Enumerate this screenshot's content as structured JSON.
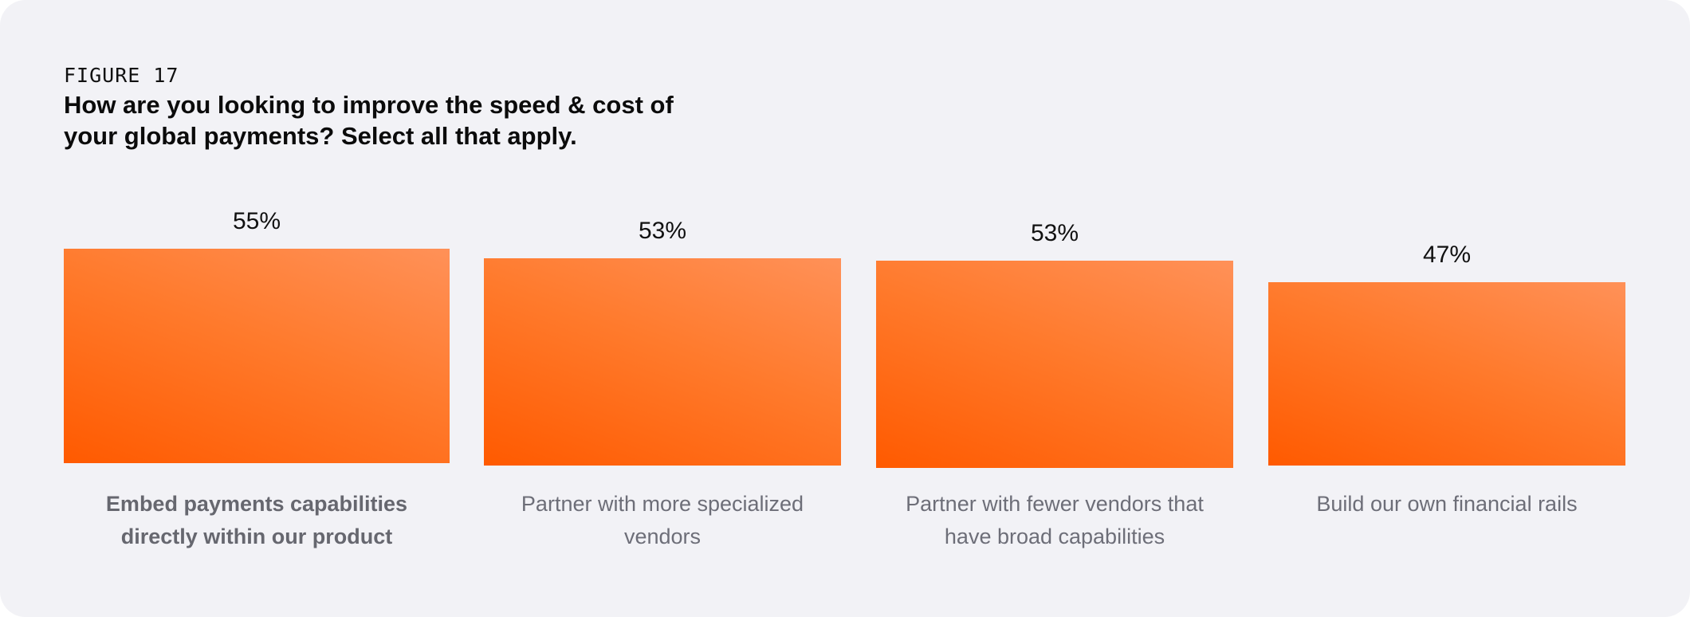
{
  "figure_label": "FIGURE 17",
  "title_line1": "How are you looking to improve the speed & cost of",
  "title_line2": "your global payments? Select all that apply.",
  "colors": {
    "background": "#f2f2f6",
    "bar_dark": "#ff5a00",
    "bar_light": "#ff9158",
    "category_text": "#6d6e78"
  },
  "chart_data": {
    "type": "bar",
    "categories": [
      "Embed payments capabilities directly within our product",
      "Partner with more specialized vendors",
      "Partner with fewer vendors that have broad capabilities",
      "Build our own financial rails"
    ],
    "category_lines": [
      [
        "Embed payments capabilities",
        "directly within our product"
      ],
      [
        "Partner with more specialized",
        "vendors"
      ],
      [
        "Partner with fewer vendors that",
        "have broad capabilities"
      ],
      [
        "Build our own financial rails"
      ]
    ],
    "values": [
      55,
      53,
      53,
      47
    ],
    "value_labels": [
      "55%",
      "53%",
      "53%",
      "47%"
    ],
    "highlighted_category": 0
  }
}
